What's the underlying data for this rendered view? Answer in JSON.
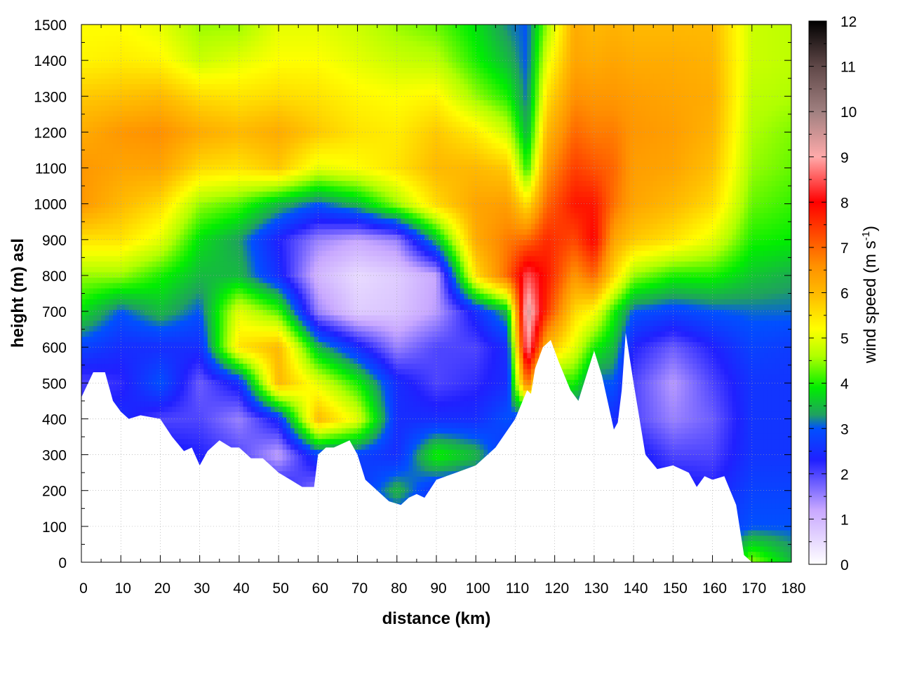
{
  "chart_data": {
    "type": "heatmap",
    "xlabel": "distance (km)",
    "ylabel": "height (m) asl",
    "xlim": [
      0,
      180
    ],
    "ylim": [
      0,
      1500
    ],
    "x_ticks": [
      "0",
      "10",
      "20",
      "30",
      "40",
      "50",
      "60",
      "70",
      "80",
      "90",
      "100",
      "110",
      "120",
      "130",
      "140",
      "150",
      "160",
      "170",
      "180"
    ],
    "y_ticks": [
      "0",
      "100",
      "200",
      "300",
      "400",
      "500",
      "600",
      "700",
      "800",
      "900",
      "1000",
      "1100",
      "1200",
      "1300",
      "1400",
      "1500"
    ],
    "grid": true,
    "colorbar": {
      "label_main": "wind speed (m s",
      "label_sup": "-1",
      "label_end": ")",
      "range": [
        0,
        12
      ],
      "ticks": [
        "0",
        "1",
        "2",
        "3",
        "4",
        "5",
        "6",
        "7",
        "8",
        "9",
        "10",
        "11",
        "12"
      ],
      "colors": [
        {
          "v": 0,
          "c": "#ffffff"
        },
        {
          "v": 1.2,
          "c": "#c8a8ff"
        },
        {
          "v": 2.3,
          "c": "#2020ff"
        },
        {
          "v": 3.0,
          "c": "#0050ff"
        },
        {
          "v": 3.3,
          "c": "#20a060"
        },
        {
          "v": 3.9,
          "c": "#00ee00"
        },
        {
          "v": 4.6,
          "c": "#b0ff00"
        },
        {
          "v": 5.2,
          "c": "#ffff00"
        },
        {
          "v": 5.9,
          "c": "#ffc000"
        },
        {
          "v": 6.6,
          "c": "#ff9000"
        },
        {
          "v": 8.0,
          "c": "#ff0000"
        },
        {
          "v": 9.0,
          "c": "#ffaaaa"
        },
        {
          "v": 10.0,
          "c": "#a08080"
        },
        {
          "v": 11.0,
          "c": "#604848"
        },
        {
          "v": 12.0,
          "c": "#000000"
        }
      ]
    },
    "terrain_profile": {
      "x": [
        0,
        3,
        6,
        8,
        10,
        12,
        15,
        20,
        23,
        26,
        28,
        30,
        32,
        35,
        38,
        40,
        43,
        46,
        50,
        53,
        56,
        59,
        60,
        62,
        64,
        66,
        68,
        70,
        72,
        75,
        78,
        81,
        83,
        85,
        87,
        90,
        95,
        100,
        105,
        110,
        113,
        114,
        115,
        117,
        119,
        121,
        124,
        126,
        128,
        130,
        132,
        134,
        135,
        136,
        137,
        138,
        140,
        143,
        146,
        150,
        154,
        156,
        158,
        160,
        163,
        166,
        168,
        170,
        172,
        174,
        176,
        178,
        180
      ],
      "y": [
        460,
        530,
        530,
        450,
        420,
        400,
        410,
        400,
        350,
        310,
        320,
        270,
        310,
        340,
        320,
        320,
        290,
        290,
        250,
        230,
        210,
        210,
        300,
        320,
        320,
        330,
        340,
        300,
        230,
        200,
        170,
        160,
        180,
        190,
        180,
        230,
        250,
        270,
        320,
        400,
        480,
        470,
        540,
        600,
        620,
        560,
        480,
        450,
        520,
        590,
        520,
        420,
        370,
        390,
        480,
        640,
        500,
        300,
        260,
        270,
        250,
        210,
        240,
        230,
        240,
        160,
        20,
        0,
        0,
        0,
        0,
        0,
        0
      ]
    },
    "field": {
      "note": "wind speed (m s-1) sampled on a distance/height grid; heights in m asl",
      "heights": [
        0,
        100,
        200,
        300,
        400,
        500,
        600,
        700,
        800,
        900,
        1000,
        1100,
        1200,
        1300,
        1400,
        1500
      ],
      "columns": [
        {
          "x": 0,
          "v": [
            2.5,
            2.5,
            2.5,
            2.5,
            2.5,
            2.0,
            2.8,
            3.8,
            4.5,
            5.5,
            6.5,
            6.5,
            6.2,
            5.8,
            5.3,
            5.2
          ]
        },
        {
          "x": 10,
          "v": [
            2.5,
            2.5,
            2.5,
            2.5,
            2.5,
            2.2,
            2.5,
            3.0,
            4.5,
            5.5,
            6.0,
            6.3,
            6.5,
            5.9,
            5.4,
            5.2
          ]
        },
        {
          "x": 20,
          "v": [
            2.5,
            2.5,
            2.5,
            2.5,
            2.0,
            3.0,
            2.5,
            3.5,
            4.0,
            5.0,
            5.6,
            6.3,
            6.6,
            6.0,
            5.3,
            5.0
          ]
        },
        {
          "x": 30,
          "v": [
            2.5,
            2.5,
            2.5,
            2.3,
            2.0,
            1.8,
            2.5,
            3.0,
            3.5,
            3.8,
            4.5,
            5.6,
            6.2,
            5.6,
            4.8,
            4.5
          ]
        },
        {
          "x": 40,
          "v": [
            2.5,
            2.5,
            2.5,
            2.0,
            1.5,
            2.5,
            5.5,
            5.0,
            3.5,
            3.3,
            4.2,
            5.5,
            6.0,
            5.5,
            5.0,
            4.5
          ]
        },
        {
          "x": 50,
          "v": [
            2.5,
            2.5,
            2.5,
            1.2,
            2.5,
            6.0,
            6.0,
            4.2,
            2.5,
            2.3,
            3.5,
            5.8,
            6.2,
            5.6,
            5.2,
            5.0
          ]
        },
        {
          "x": 60,
          "v": [
            2.5,
            2.5,
            1.5,
            2.8,
            6.0,
            5.0,
            3.5,
            1.5,
            1.0,
            1.5,
            3.0,
            5.0,
            5.8,
            5.5,
            5.2,
            5.0
          ]
        },
        {
          "x": 70,
          "v": [
            2.5,
            2.5,
            2.5,
            2.8,
            5.0,
            4.0,
            2.5,
            0.7,
            0.5,
            1.2,
            3.5,
            5.2,
            5.5,
            5.3,
            5.0,
            4.8
          ]
        },
        {
          "x": 80,
          "v": [
            2.5,
            2.5,
            3.5,
            2.5,
            2.5,
            2.5,
            1.5,
            0.8,
            0.7,
            1.5,
            4.5,
            5.5,
            5.4,
            5.2,
            4.8,
            4.5
          ]
        },
        {
          "x": 90,
          "v": [
            2.5,
            2.5,
            2.5,
            4.0,
            2.5,
            2.0,
            2.0,
            1.3,
            1.2,
            3.5,
            5.6,
            6.0,
            5.8,
            5.3,
            4.7,
            4.3
          ]
        },
        {
          "x": 100,
          "v": [
            2.5,
            2.5,
            2.5,
            3.5,
            2.5,
            2.2,
            2.0,
            2.5,
            5.5,
            6.2,
            6.3,
            6.0,
            5.4,
            4.5,
            4.0,
            3.8
          ]
        },
        {
          "x": 108,
          "v": [
            2.5,
            2.5,
            2.5,
            2.5,
            3.0,
            2.5,
            2.5,
            3.5,
            7.0,
            6.8,
            6.4,
            5.8,
            4.8,
            4.0,
            3.5,
            3.2
          ]
        },
        {
          "x": 113,
          "v": [
            2.5,
            2.5,
            2.5,
            2.5,
            2.5,
            7.0,
            9.0,
            9.5,
            8.5,
            7.0,
            5.5,
            4.0,
            3.4,
            3.1,
            3.0,
            3.0
          ]
        },
        {
          "x": 118,
          "v": [
            2.5,
            2.5,
            2.5,
            2.5,
            2.5,
            4.0,
            6.0,
            7.5,
            7.8,
            7.6,
            7.0,
            6.5,
            6.0,
            5.5,
            5.0,
            4.5
          ]
        },
        {
          "x": 125,
          "v": [
            2.5,
            2.5,
            2.5,
            2.5,
            2.5,
            4.0,
            5.0,
            5.6,
            6.5,
            7.3,
            7.8,
            7.4,
            7.0,
            6.6,
            6.3,
            6.2
          ]
        },
        {
          "x": 130,
          "v": [
            2.5,
            2.5,
            2.5,
            2.5,
            2.5,
            3.0,
            4.0,
            5.2,
            7.0,
            8.0,
            7.8,
            7.2,
            6.8,
            6.5,
            6.2,
            6.0
          ]
        },
        {
          "x": 135,
          "v": [
            2.5,
            2.5,
            2.5,
            2.5,
            2.5,
            3.0,
            3.5,
            4.0,
            5.6,
            6.3,
            6.9,
            7.0,
            6.8,
            6.5,
            6.3,
            6.1
          ]
        },
        {
          "x": 140,
          "v": [
            2.5,
            2.5,
            2.5,
            2.5,
            2.0,
            2.0,
            2.3,
            3.0,
            4.5,
            5.8,
            6.3,
            6.4,
            6.5,
            6.4,
            6.2,
            6.0
          ]
        },
        {
          "x": 150,
          "v": [
            2.5,
            2.5,
            2.5,
            2.0,
            1.5,
            1.3,
            1.8,
            2.8,
            4.0,
            5.5,
            6.0,
            6.3,
            6.4,
            6.3,
            6.2,
            6.0
          ]
        },
        {
          "x": 160,
          "v": [
            2.5,
            2.5,
            2.3,
            2.0,
            1.8,
            2.0,
            2.3,
            3.0,
            4.0,
            5.0,
            5.6,
            5.9,
            6.1,
            6.2,
            6.1,
            6.0
          ]
        },
        {
          "x": 170,
          "v": [
            4.5,
            3.0,
            2.8,
            2.6,
            2.6,
            2.6,
            2.8,
            3.1,
            3.6,
            4.0,
            4.3,
            4.5,
            4.6,
            4.7,
            4.8,
            4.8
          ]
        },
        {
          "x": 180,
          "v": [
            3.5,
            3.0,
            2.8,
            2.6,
            2.6,
            2.6,
            2.7,
            3.1,
            3.4,
            3.9,
            4.1,
            4.3,
            4.4,
            4.6,
            4.7,
            4.7
          ]
        }
      ]
    }
  }
}
